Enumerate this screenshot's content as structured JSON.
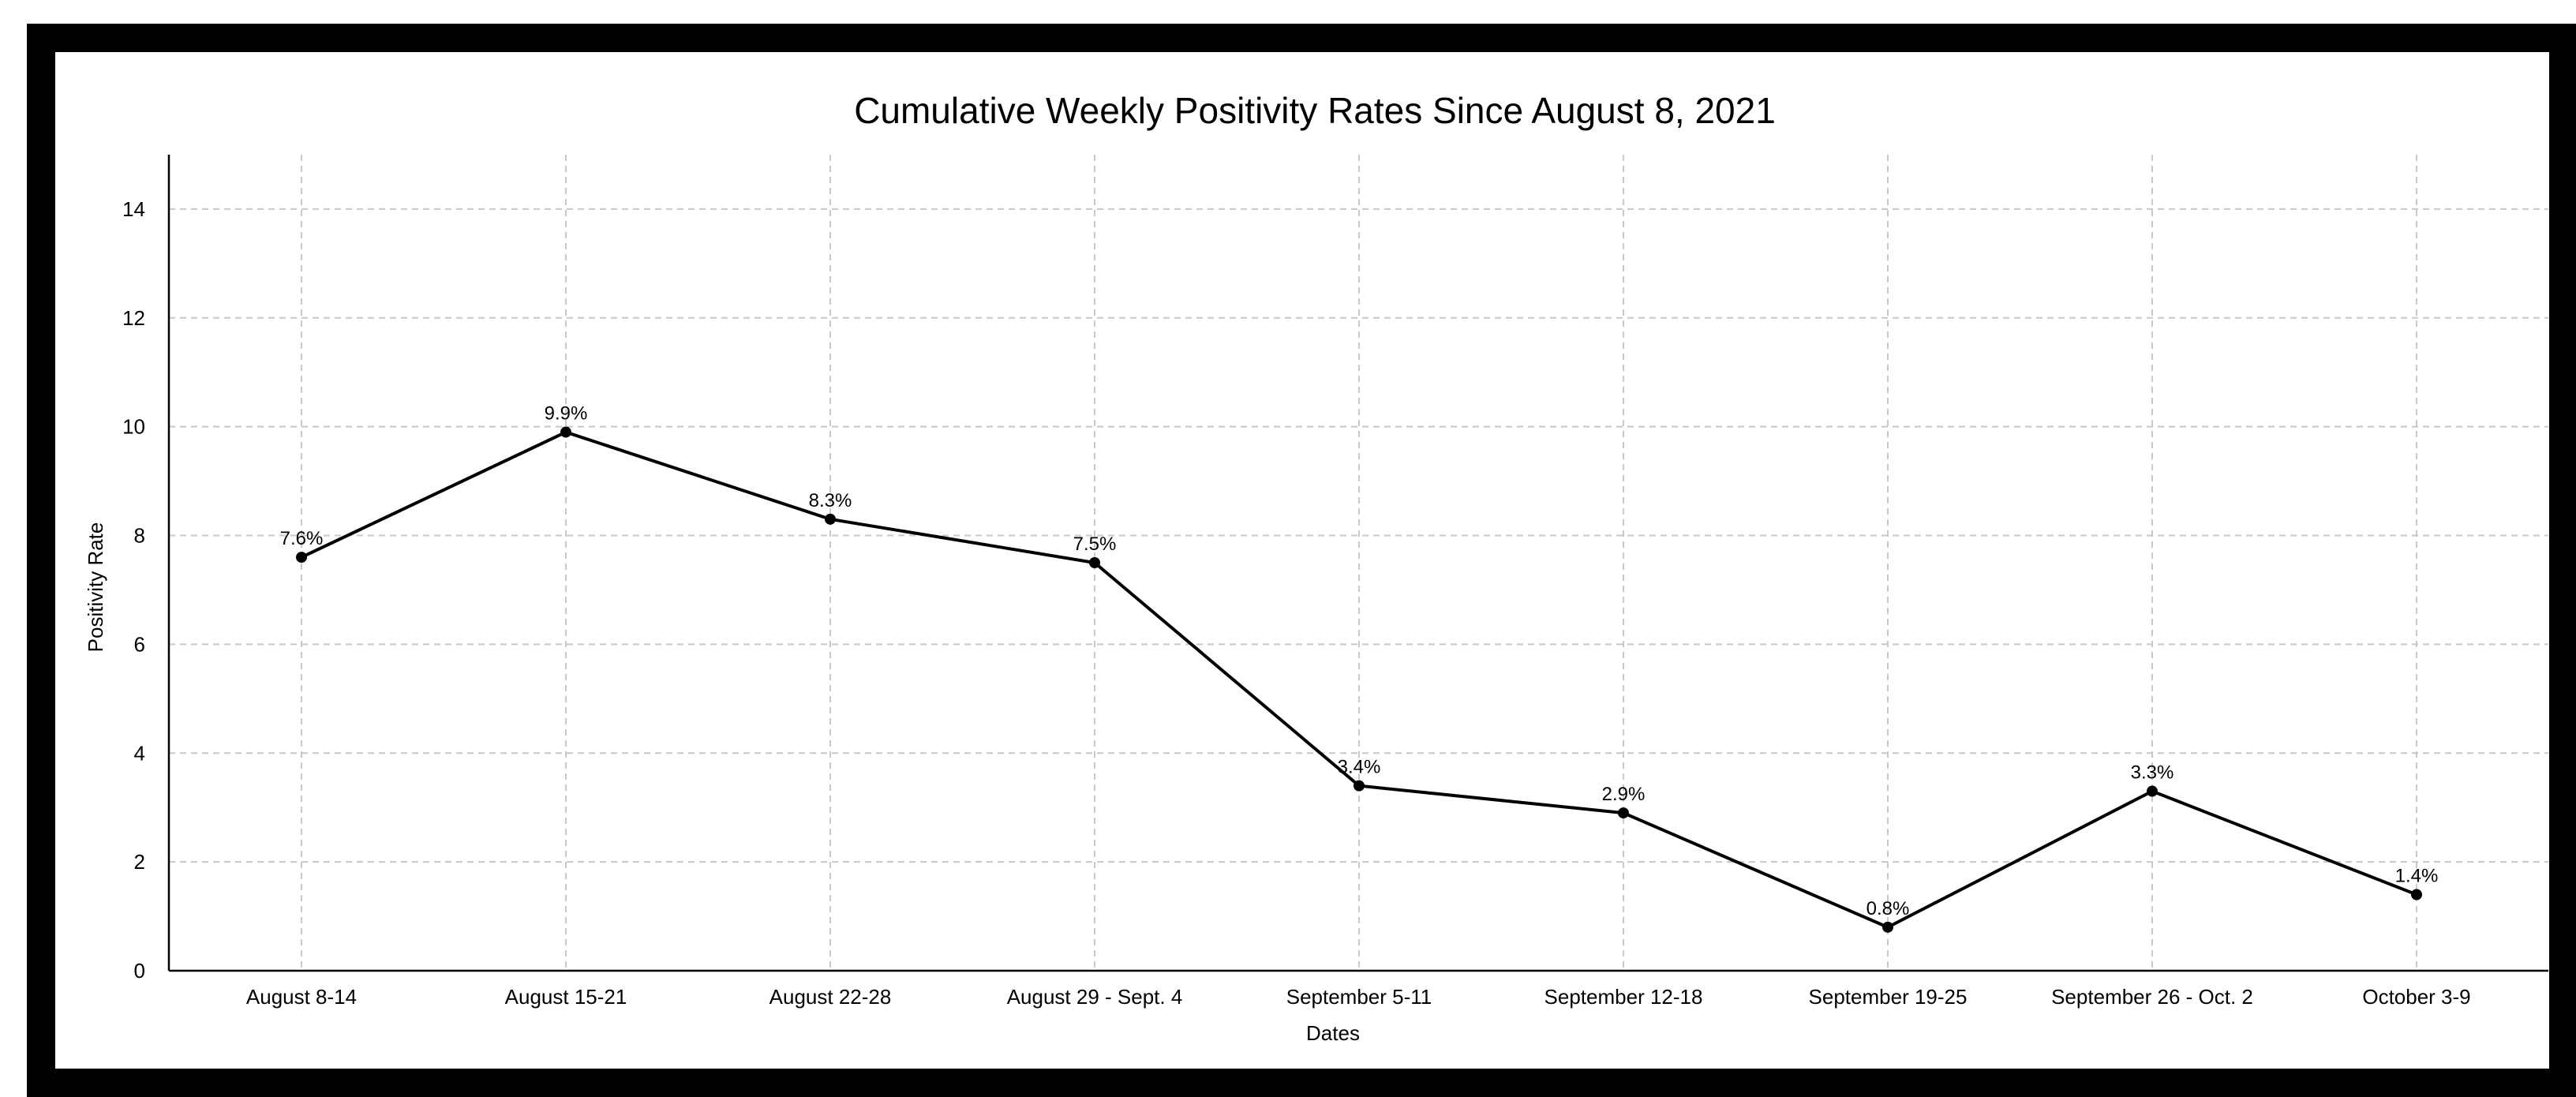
{
  "chart_data": {
    "type": "line",
    "title": "Cumulative Weekly Positivity Rates Since August 8, 2021",
    "xlabel": "Dates",
    "ylabel": "Positivity Rate",
    "categories": [
      "August 8-14",
      "August 15-21",
      "August 22-28",
      "August 29 - Sept. 4",
      "September 5-11",
      "September 12-18",
      "September 19-25",
      "September 26 - Oct. 2",
      "October 3-9"
    ],
    "series": [
      {
        "values": [
          7.6,
          9.9,
          8.3,
          7.5,
          3.4,
          2.9,
          0.8,
          3.3,
          1.4
        ],
        "data_labels": [
          "7.6%",
          "9.9%",
          "8.3%",
          "7.5%",
          "3.4%",
          "2.9%",
          "0.8%",
          "3.3%",
          "1.4%"
        ],
        "color": "#000000"
      }
    ],
    "ylim": [
      0,
      15
    ],
    "yticks": [
      0,
      2,
      4,
      6,
      8,
      10,
      12,
      14
    ],
    "grid": true,
    "grid_style": "dashed",
    "legend": "none"
  }
}
